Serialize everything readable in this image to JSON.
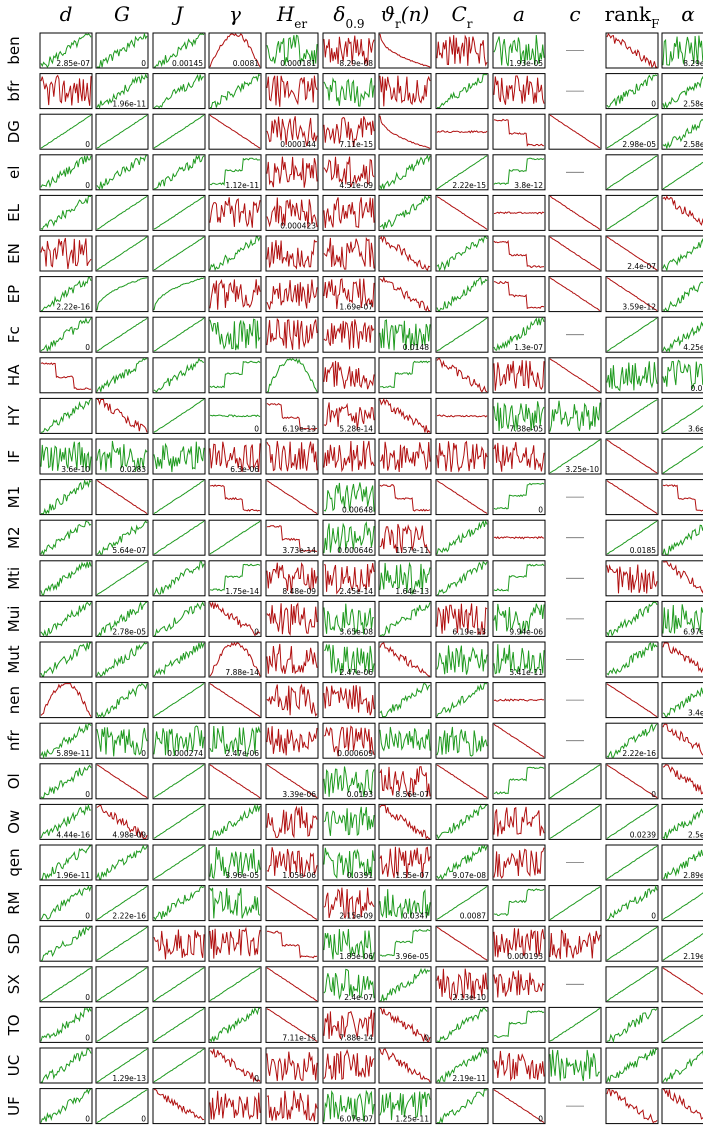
{
  "chart_data": {
    "type": "line",
    "grid": false,
    "columns": [
      "d",
      "G",
      "J",
      "γ",
      "H_er",
      "δ_0.9",
      "ϑ_r(n)",
      "C_r",
      "a",
      "c",
      "rank_F",
      "α"
    ],
    "rows": [
      "ben",
      "bfr",
      "DG",
      "el",
      "EL",
      "EN",
      "EP",
      "Fc",
      "HA",
      "HY",
      "IF",
      "M1",
      "M2",
      "Mti",
      "Mui",
      "Mut",
      "nen",
      "nfr",
      "Ol",
      "Ow",
      "qen",
      "RM",
      "SD",
      "SX",
      "TO",
      "UC",
      "UF"
    ],
    "colors": {
      "increasing": "#1f9a1f",
      "decreasing": "#b01010",
      "frame": "#000000",
      "empty": "#6e6e6e"
    },
    "values": [
      [
        "2.85e-07",
        "0",
        "0.00145",
        "0.0081",
        "0.000181",
        "8.29e-08",
        "",
        "",
        "1.93e-05",
        "",
        "",
        "8.29e-0"
      ],
      [
        "",
        "1.96e-11",
        "",
        "",
        "",
        "",
        "",
        "",
        "",
        "",
        "0",
        "2.58e-0"
      ],
      [
        "0",
        "",
        "",
        "",
        "0.000144",
        "7.11e-15",
        "",
        "",
        "",
        "",
        "2.98e-05",
        "2.58e-0"
      ],
      [
        "0",
        "",
        "",
        "1.12e-11",
        "",
        "4.51e-09",
        "",
        "2.22e-15",
        "3.8e-12",
        "",
        "",
        ""
      ],
      [
        "",
        "",
        "",
        "",
        "0.000423",
        "",
        "",
        "",
        "",
        "",
        "",
        ""
      ],
      [
        "",
        "",
        "",
        "",
        "",
        "",
        "",
        "",
        "",
        "",
        "2.4e-07",
        ""
      ],
      [
        "2.22e-16",
        "",
        "",
        "",
        "",
        "1.69e-07",
        "",
        "",
        "",
        "",
        "3.59e-12",
        ""
      ],
      [
        "0",
        "",
        "",
        "",
        "",
        "",
        "0.0148",
        "",
        "1.3e-07",
        "",
        "",
        "4.25e-1"
      ],
      [
        "",
        "",
        "",
        "",
        "",
        "",
        "",
        "",
        "",
        "",
        "",
        "0.080"
      ],
      [
        "",
        "",
        "",
        "0",
        "6.19e-13",
        "5.28e-14",
        "",
        "",
        "7.38e-05",
        "",
        "",
        "3.6e-1"
      ],
      [
        "3.6e-10",
        "0.0283",
        "",
        "6.3e-06",
        "",
        "",
        "",
        "",
        "",
        "3.25e-10",
        "",
        ""
      ],
      [
        "",
        "",
        "",
        "",
        "",
        "0.00648",
        "",
        "",
        "0",
        "",
        "",
        ""
      ],
      [
        "",
        "5.64e-07",
        "",
        "",
        "3.73e-14",
        "0.000646",
        "1.57e-11",
        "",
        "",
        "",
        "0.0185",
        ""
      ],
      [
        "",
        "",
        "",
        "1.75e-14",
        "8.48e-09",
        "2.45e-14",
        "1.64e-13",
        "",
        "",
        "",
        "",
        ""
      ],
      [
        "",
        "2.78e-05",
        "",
        "0",
        "",
        "3.65e-08",
        "",
        "6.19e-13",
        "9.94e-06",
        "",
        "",
        "6.97e-1"
      ],
      [
        "",
        "",
        "",
        "7.88e-14",
        "",
        "2.47e-06",
        "",
        "",
        "3.41e-11",
        "",
        "",
        ""
      ],
      [
        "",
        "",
        "",
        "",
        "",
        "",
        "",
        "",
        "",
        "",
        "",
        "3.4e-1"
      ],
      [
        "5.89e-11",
        "0",
        "0.000274",
        "2.47e-06",
        "",
        "0.000609",
        "",
        "",
        "",
        "",
        "2.22e-16",
        ""
      ],
      [
        "0",
        "",
        "",
        "",
        "3.39e-06",
        "0.0193",
        "8.56e-07",
        "",
        "",
        "",
        "0",
        ""
      ],
      [
        "4.44e-16",
        "4.98e-09",
        "",
        "",
        "",
        "",
        "",
        "",
        "",
        "",
        "0.0239",
        "2.5e-0"
      ],
      [
        "1.96e-11",
        "",
        "",
        "3.96e-05",
        "1.05e-06",
        "0.0391",
        "1.55e-07",
        "9.07e-08",
        "",
        "",
        "",
        "2.89e-1"
      ],
      [
        "0",
        "2.22e-16",
        "",
        "",
        "",
        "2.15e-09",
        "0.0347",
        "0.0087",
        "",
        "",
        "0",
        ""
      ],
      [
        "",
        "",
        "",
        "",
        "",
        "1.85e-06",
        "3.96e-05",
        "",
        "0.000193",
        "",
        "",
        "2.19e-1"
      ],
      [
        "0",
        "",
        "",
        "",
        "",
        "2.4e-07",
        "",
        "2.13e-10",
        "",
        "",
        "",
        ""
      ],
      [
        "0",
        "",
        "",
        "",
        "7.11e-15",
        "7.88e-14",
        "0",
        "",
        "",
        "",
        "",
        ""
      ],
      [
        "",
        "1.29e-13",
        "",
        "0",
        "",
        "",
        "",
        "2.19e-11",
        "",
        "",
        "",
        ""
      ],
      [
        "0",
        "0",
        "",
        "",
        "",
        "6.07e-07",
        "1.25e-11",
        "",
        "0",
        "",
        "",
        ""
      ]
    ],
    "trend": [
      "UUUDUDDDUUDU",
      "DUUUDUDUDUUU",
      "UUUDDDDDDDUU",
      "UUUUDDUUUUUU",
      "UUUDDDUDDDUD",
      "DUUUDDDUDDDU",
      "UUUDDDDUDDDU",
      "UUUUDDUUUUUU",
      "DUUUUDUDDDUU",
      "UDUUDDDDUUUU",
      "UUUDDDDDDUDU",
      "UDUDDUDDUUDD",
      "UUUUDUDUDUUU",
      "UUUUDDUUUUDD",
      "UUUDDUUDUUUU",
      "UUUDDUDUUUUD",
      "DUUDDDUUDUDU",
      "UUUUDDUUDUUD",
      "UDUDDUDDUUDD",
      "UDUUDUDUDUUU",
      "UUUUDUDUDUUU",
      "UUUUDDUUUUUU",
      "UUDDDUUDDDUU",
      "UUUUDUUDDUUD",
      "UUUUDDDUUUUU",
      "UUUDDDDUDUUU",
      "UUDDDUUUDUDD"
    ],
    "shape": [
      "rrrmnncnnxrn",
      "nrrrnnnrnxrr",
      "llllnncfsllr",
      "rrrsnnrlsxll",
      "rllnnnrlfllr",
      "nllrnnrrsllr",
      "rccnnnrrsllr",
      "rllnnnnlrxlr",
      "srrsmnsrnlnn",
      "rrlfsnrfnnll",
      "nnnnnnnnnlll",
      "rllslnslsxls",
      "rrllsnnrfxlr",
      "rlrsnnnrsxnr",
      "rrrrnnrnnxrn",
      "rrrmnnrnnxrr",
      "mrllnnrrfxlr",
      "rnnnnnnnlxrr",
      "rllllnnlsllr",
      "rrlrnnrrnllr",
      "rrlnnnnrnxlr",
      "rlrnlnnlslrl",
      "rlnnsnslnnll",
      "lllllnrnnxll",
      "rllrlnrrslrl",
      "rllrnnrrnnrr",
      "rlrnnnnrlxrr"
    ]
  }
}
